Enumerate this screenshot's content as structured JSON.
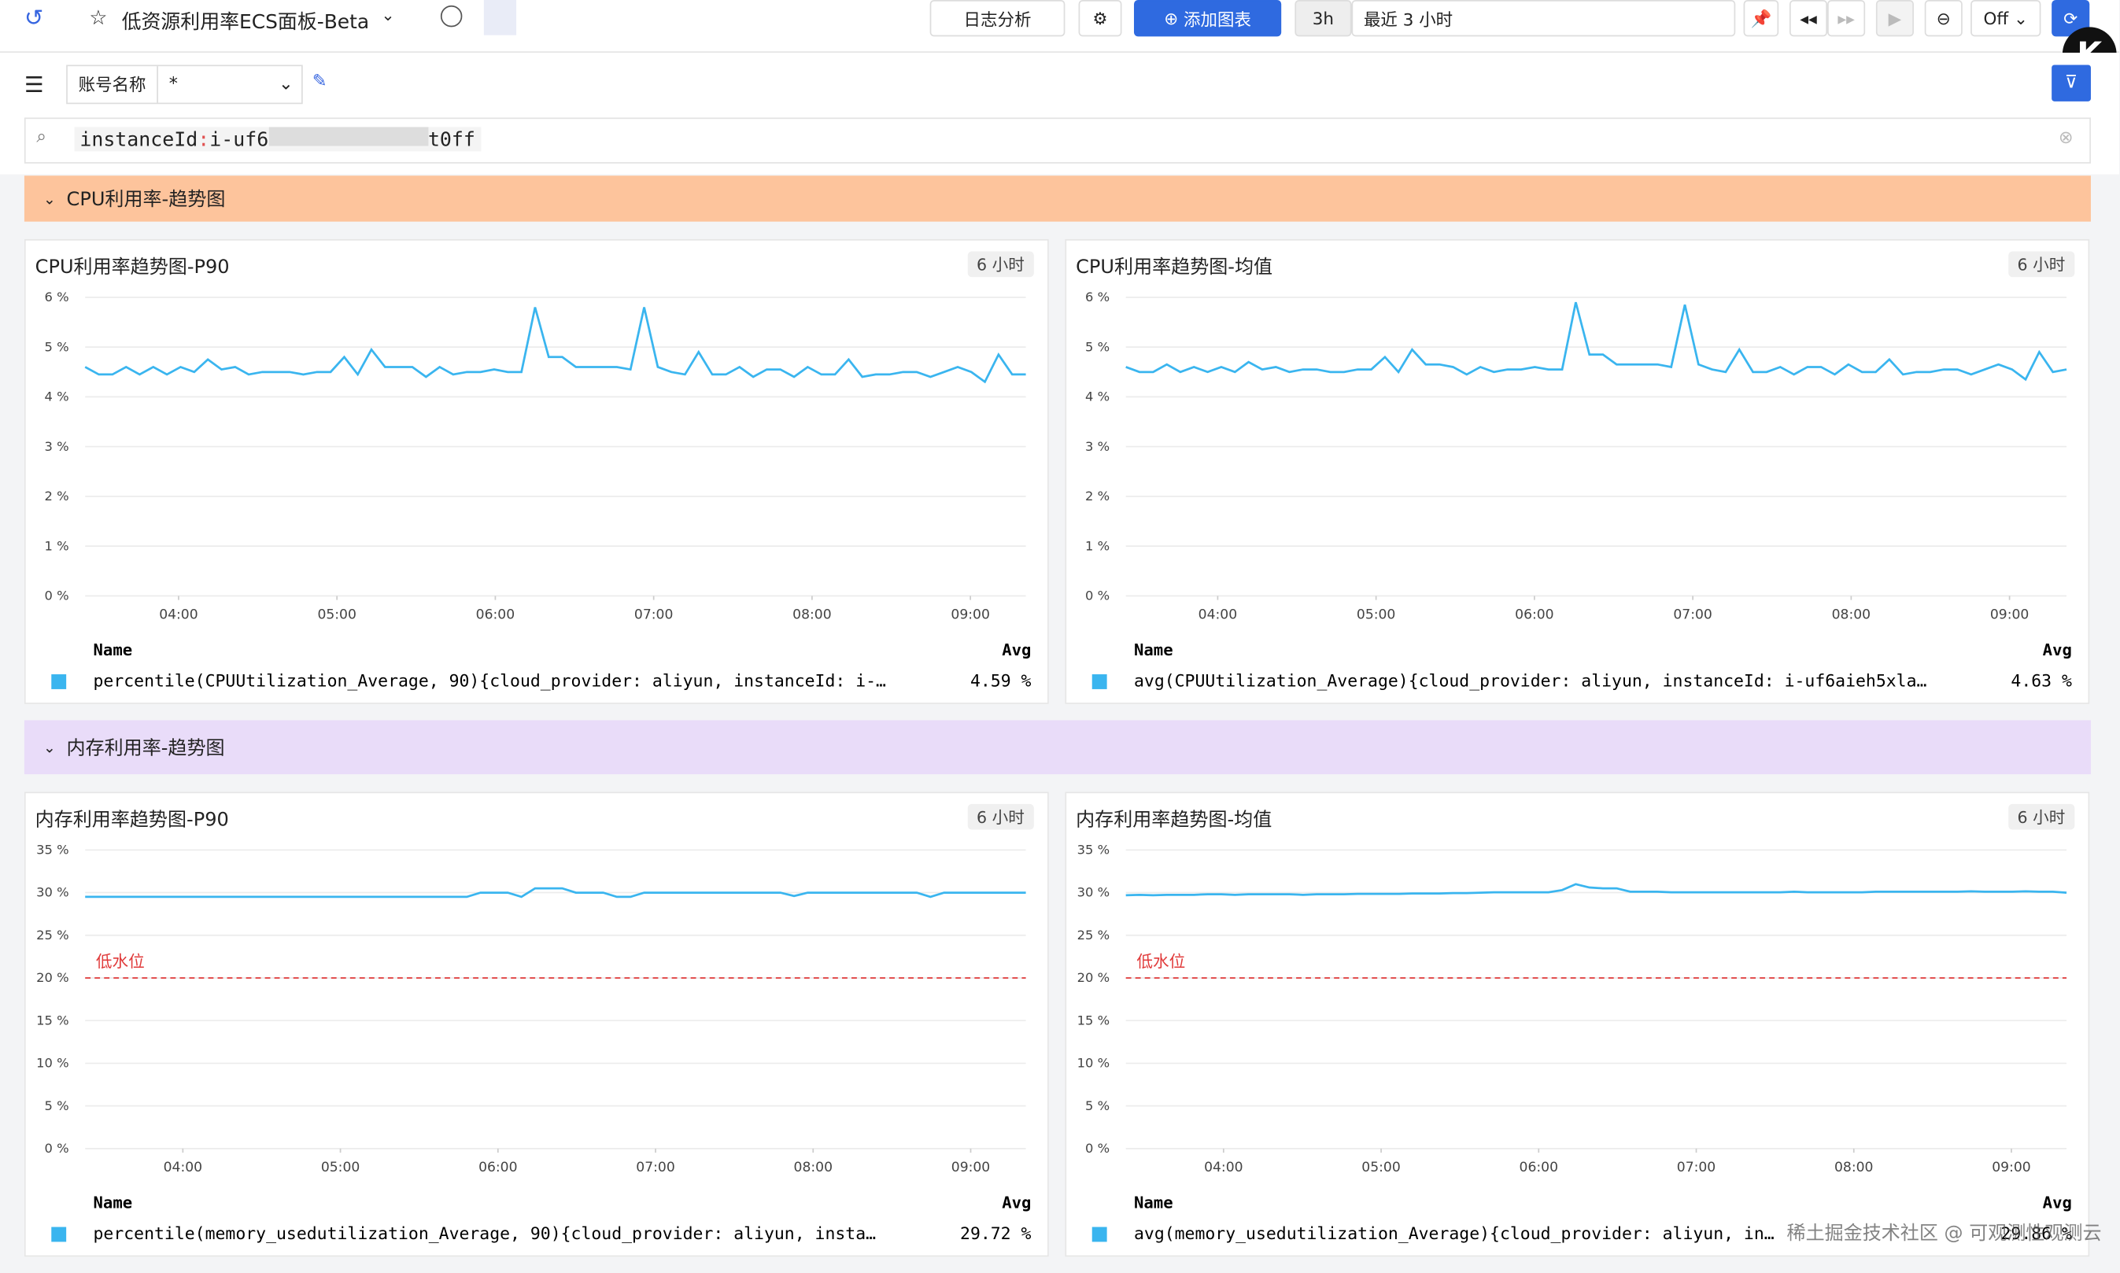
{
  "toolbar": {
    "title": "低资源利用率ECS面板-Beta",
    "log": "日志分析",
    "add": "添加图表",
    "range_short": "3h",
    "range": "最近 3 小时",
    "refresh": "Off"
  },
  "filter": {
    "label": "账号名称",
    "value": "*"
  },
  "search": {
    "key": "instanceId",
    "sep": ":",
    "value_start": "i-uf6",
    "value_end": "t0ff"
  },
  "watermark": "稀土掘金技术社区 @ 可观测性观测云",
  "sections": [
    {
      "title": "CPU利用率-趋势图",
      "color": "#fdc49c",
      "panels": [
        {
          "title": "CPU利用率趋势图-P90",
          "badge": "6 小时",
          "chart": {
            "type": "line",
            "xlim": [
              3.41,
              9.35
            ],
            "xticks": [
              {
                "value": 4,
                "label": "04:00"
              },
              {
                "value": 5,
                "label": "05:00"
              },
              {
                "value": 6,
                "label": "06:00"
              },
              {
                "value": 7,
                "label": "07:00"
              },
              {
                "value": 8,
                "label": "08:00"
              },
              {
                "value": 9,
                "label": "09:00"
              }
            ],
            "ylim": [
              0,
              6
            ],
            "yticks": [
              {
                "value": 0,
                "label": "0 %"
              },
              {
                "value": 1,
                "label": "1 %"
              },
              {
                "value": 2,
                "label": "2 %"
              },
              {
                "value": 3,
                "label": "3 %"
              },
              {
                "value": 4,
                "label": "4 %"
              },
              {
                "value": 5,
                "label": "5 %"
              },
              {
                "value": 6,
                "label": "6 %"
              }
            ],
            "series": [
              {
                "name": "percentile(CPUUtilization_Average, 90){cloud_provider: aliyun, instanceId: i-…",
                "color": "#3ab5ef",
                "values": [
                  4.6,
                  4.45,
                  4.45,
                  4.6,
                  4.45,
                  4.6,
                  4.45,
                  4.6,
                  4.5,
                  4.75,
                  4.55,
                  4.6,
                  4.45,
                  4.5,
                  4.5,
                  4.5,
                  4.45,
                  4.5,
                  4.5,
                  4.8,
                  4.45,
                  4.95,
                  4.6,
                  4.6,
                  4.6,
                  4.4,
                  4.6,
                  4.45,
                  4.5,
                  4.5,
                  4.55,
                  4.5,
                  4.5,
                  5.8,
                  4.8,
                  4.8,
                  4.6,
                  4.6,
                  4.6,
                  4.6,
                  4.55,
                  5.8,
                  4.6,
                  4.5,
                  4.45,
                  4.9,
                  4.45,
                  4.45,
                  4.6,
                  4.4,
                  4.55,
                  4.55,
                  4.4,
                  4.6,
                  4.45,
                  4.45,
                  4.75,
                  4.4,
                  4.45,
                  4.45,
                  4.5,
                  4.5,
                  4.4,
                  4.5,
                  4.6,
                  4.5,
                  4.3,
                  4.85,
                  4.45,
                  4.45
                ]
              }
            ]
          },
          "legend": {
            "name_header": "Name",
            "avg_header": "Avg",
            "avgs": [
              "4.59 %"
            ]
          }
        },
        {
          "title": "CPU利用率趋势图-均值",
          "badge": "6 小时",
          "chart": {
            "type": "line",
            "xlim": [
              3.42,
              9.36
            ],
            "xticks": [
              {
                "value": 4,
                "label": "04:00"
              },
              {
                "value": 5,
                "label": "05:00"
              },
              {
                "value": 6,
                "label": "06:00"
              },
              {
                "value": 7,
                "label": "07:00"
              },
              {
                "value": 8,
                "label": "08:00"
              },
              {
                "value": 9,
                "label": "09:00"
              }
            ],
            "ylim": [
              0,
              6
            ],
            "yticks": [
              {
                "value": 0,
                "label": "0 %"
              },
              {
                "value": 1,
                "label": "1 %"
              },
              {
                "value": 2,
                "label": "2 %"
              },
              {
                "value": 3,
                "label": "3 %"
              },
              {
                "value": 4,
                "label": "4 %"
              },
              {
                "value": 5,
                "label": "5 %"
              },
              {
                "value": 6,
                "label": "6 %"
              }
            ],
            "series": [
              {
                "name": "avg(CPUUtilization_Average){cloud_provider: aliyun, instanceId: i-uf6aieh5xla…",
                "color": "#3ab5ef",
                "values": [
                  4.6,
                  4.5,
                  4.5,
                  4.65,
                  4.5,
                  4.6,
                  4.5,
                  4.6,
                  4.5,
                  4.7,
                  4.55,
                  4.6,
                  4.5,
                  4.55,
                  4.55,
                  4.5,
                  4.5,
                  4.55,
                  4.55,
                  4.8,
                  4.5,
                  4.95,
                  4.65,
                  4.65,
                  4.6,
                  4.45,
                  4.6,
                  4.5,
                  4.55,
                  4.55,
                  4.6,
                  4.55,
                  4.55,
                  5.9,
                  4.85,
                  4.85,
                  4.65,
                  4.65,
                  4.65,
                  4.65,
                  4.6,
                  5.85,
                  4.65,
                  4.55,
                  4.5,
                  4.95,
                  4.5,
                  4.5,
                  4.6,
                  4.45,
                  4.6,
                  4.6,
                  4.45,
                  4.65,
                  4.5,
                  4.5,
                  4.75,
                  4.45,
                  4.5,
                  4.5,
                  4.55,
                  4.55,
                  4.45,
                  4.55,
                  4.65,
                  4.55,
                  4.35,
                  4.9,
                  4.5,
                  4.55
                ]
              }
            ]
          },
          "legend": {
            "name_header": "Name",
            "avg_header": "Avg",
            "avgs": [
              "4.63 %"
            ]
          }
        }
      ]
    },
    {
      "title": "内存利用率-趋势图",
      "color": "#e9dcf9",
      "panels": [
        {
          "title": "内存利用率趋势图-P90",
          "badge": "6 小时",
          "chart": {
            "type": "line",
            "xlim": [
              3.38,
              9.35
            ],
            "xticks": [
              {
                "value": 4,
                "label": "04:00"
              },
              {
                "value": 5,
                "label": "05:00"
              },
              {
                "value": 6,
                "label": "06:00"
              },
              {
                "value": 7,
                "label": "07:00"
              },
              {
                "value": 8,
                "label": "08:00"
              },
              {
                "value": 9,
                "label": "09:00"
              }
            ],
            "ylim": [
              0,
              35
            ],
            "yticks": [
              {
                "value": 0,
                "label": "0 %"
              },
              {
                "value": 5,
                "label": "5 %"
              },
              {
                "value": 10,
                "label": "10 %"
              },
              {
                "value": 15,
                "label": "15 %"
              },
              {
                "value": 20,
                "label": "20 %"
              },
              {
                "value": 25,
                "label": "25 %"
              },
              {
                "value": 30,
                "label": "30 %"
              },
              {
                "value": 35,
                "label": "35 %"
              }
            ],
            "threshold": {
              "value": 20,
              "label": "低水位",
              "color": "#e03a3a"
            },
            "series": [
              {
                "name": "percentile(memory_usedutilization_Average, 90){cloud_provider: aliyun, insta…",
                "color": "#3ab5ef",
                "values": [
                  29.5,
                  29.5,
                  29.5,
                  29.5,
                  29.5,
                  29.5,
                  29.5,
                  29.5,
                  29.5,
                  29.5,
                  29.5,
                  29.5,
                  29.5,
                  29.5,
                  29.5,
                  29.5,
                  29.5,
                  29.5,
                  29.5,
                  29.5,
                  29.5,
                  29.5,
                  29.5,
                  29.5,
                  29.5,
                  29.5,
                  29.5,
                  29.5,
                  29.5,
                  30,
                  30,
                  30,
                  29.5,
                  30.5,
                  30.5,
                  30.5,
                  30,
                  30,
                  30,
                  29.5,
                  29.5,
                  30,
                  30,
                  30,
                  30,
                  30,
                  30,
                  30,
                  30,
                  30,
                  30,
                  30,
                  29.6,
                  30,
                  30,
                  30,
                  30,
                  30,
                  30,
                  30,
                  30,
                  30,
                  29.5,
                  30,
                  30,
                  30,
                  30,
                  30,
                  30,
                  30
                ]
              }
            ]
          },
          "legend": {
            "name_header": "Name",
            "avg_header": "Avg",
            "avgs": [
              "29.72 %"
            ]
          }
        },
        {
          "title": "内存利用率趋势图-均值",
          "badge": "6 小时",
          "chart": {
            "type": "line",
            "xlim": [
              3.38,
              9.35
            ],
            "xticks": [
              {
                "value": 4,
                "label": "04:00"
              },
              {
                "value": 5,
                "label": "05:00"
              },
              {
                "value": 6,
                "label": "06:00"
              },
              {
                "value": 7,
                "label": "07:00"
              },
              {
                "value": 8,
                "label": "08:00"
              },
              {
                "value": 9,
                "label": "09:00"
              }
            ],
            "ylim": [
              0,
              35
            ],
            "yticks": [
              {
                "value": 0,
                "label": "0 %"
              },
              {
                "value": 5,
                "label": "5 %"
              },
              {
                "value": 10,
                "label": "10 %"
              },
              {
                "value": 15,
                "label": "15 %"
              },
              {
                "value": 20,
                "label": "20 %"
              },
              {
                "value": 25,
                "label": "25 %"
              },
              {
                "value": 30,
                "label": "30 %"
              },
              {
                "value": 35,
                "label": "35 %"
              }
            ],
            "threshold": {
              "value": 20,
              "label": "低水位",
              "color": "#e03a3a"
            },
            "series": [
              {
                "name": "avg(memory_usedutilization_Average){cloud_provider: aliyun, in…",
                "color": "#3ab5ef",
                "values": [
                  29.7,
                  29.75,
                  29.7,
                  29.75,
                  29.75,
                  29.75,
                  29.8,
                  29.8,
                  29.75,
                  29.8,
                  29.8,
                  29.8,
                  29.8,
                  29.75,
                  29.8,
                  29.8,
                  29.8,
                  29.85,
                  29.85,
                  29.85,
                  29.85,
                  29.9,
                  29.9,
                  29.9,
                  29.95,
                  29.95,
                  30,
                  30.05,
                  30.05,
                  30.05,
                  30.05,
                  30.05,
                  30.3,
                  31,
                  30.6,
                  30.5,
                  30.5,
                  30.1,
                  30.1,
                  30.1,
                  30.05,
                  30.05,
                  30.05,
                  30.05,
                  30.05,
                  30.05,
                  30.05,
                  30.05,
                  30.05,
                  30.1,
                  30.05,
                  30.05,
                  30.05,
                  30.05,
                  30.05,
                  30.1,
                  30.1,
                  30.1,
                  30.1,
                  30.1,
                  30.1,
                  30.1,
                  30.15,
                  30.1,
                  30.1,
                  30.1,
                  30.15,
                  30.1,
                  30.1,
                  30
                ]
              }
            ]
          },
          "legend": {
            "name_header": "Name",
            "avg_header": "Avg",
            "avgs": [
              "29.86 %"
            ]
          }
        }
      ]
    }
  ]
}
